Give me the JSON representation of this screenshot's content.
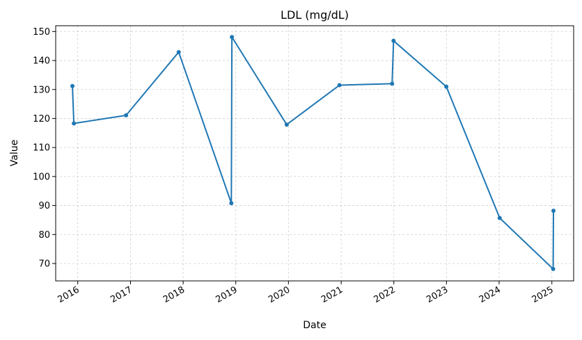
{
  "chart_data": {
    "type": "line",
    "title": "LDL (mg/dL)",
    "xlabel": "Date",
    "ylabel": "Value",
    "ylim": [
      64,
      152
    ],
    "xlim": [
      "2015-08-01",
      "2025-06-01"
    ],
    "grid": true,
    "x_ticks": [
      "2016",
      "2017",
      "2018",
      "2019",
      "2020",
      "2021",
      "2022",
      "2023",
      "2024",
      "2025"
    ],
    "y_ticks": [
      70,
      80,
      90,
      100,
      110,
      120,
      130,
      140,
      150
    ],
    "colors": {
      "line": "#1f77b4"
    },
    "series": [
      {
        "x": [
          "2015-11-25",
          "2015-12-05",
          "2016-12-01",
          "2017-12-01",
          "2018-12-01",
          "2018-12-05",
          "2019-12-20",
          "2020-12-20",
          "2021-12-20",
          "2021-12-30",
          "2022-12-31",
          "2024-01-05",
          "2025-01-10",
          "2025-01-12"
        ],
        "values": [
          131.2,
          118.3,
          121.1,
          142.9,
          90.8,
          148.1,
          117.9,
          131.5,
          132.0,
          146.8,
          131.0,
          85.7,
          68.1,
          88.2
        ]
      }
    ]
  }
}
